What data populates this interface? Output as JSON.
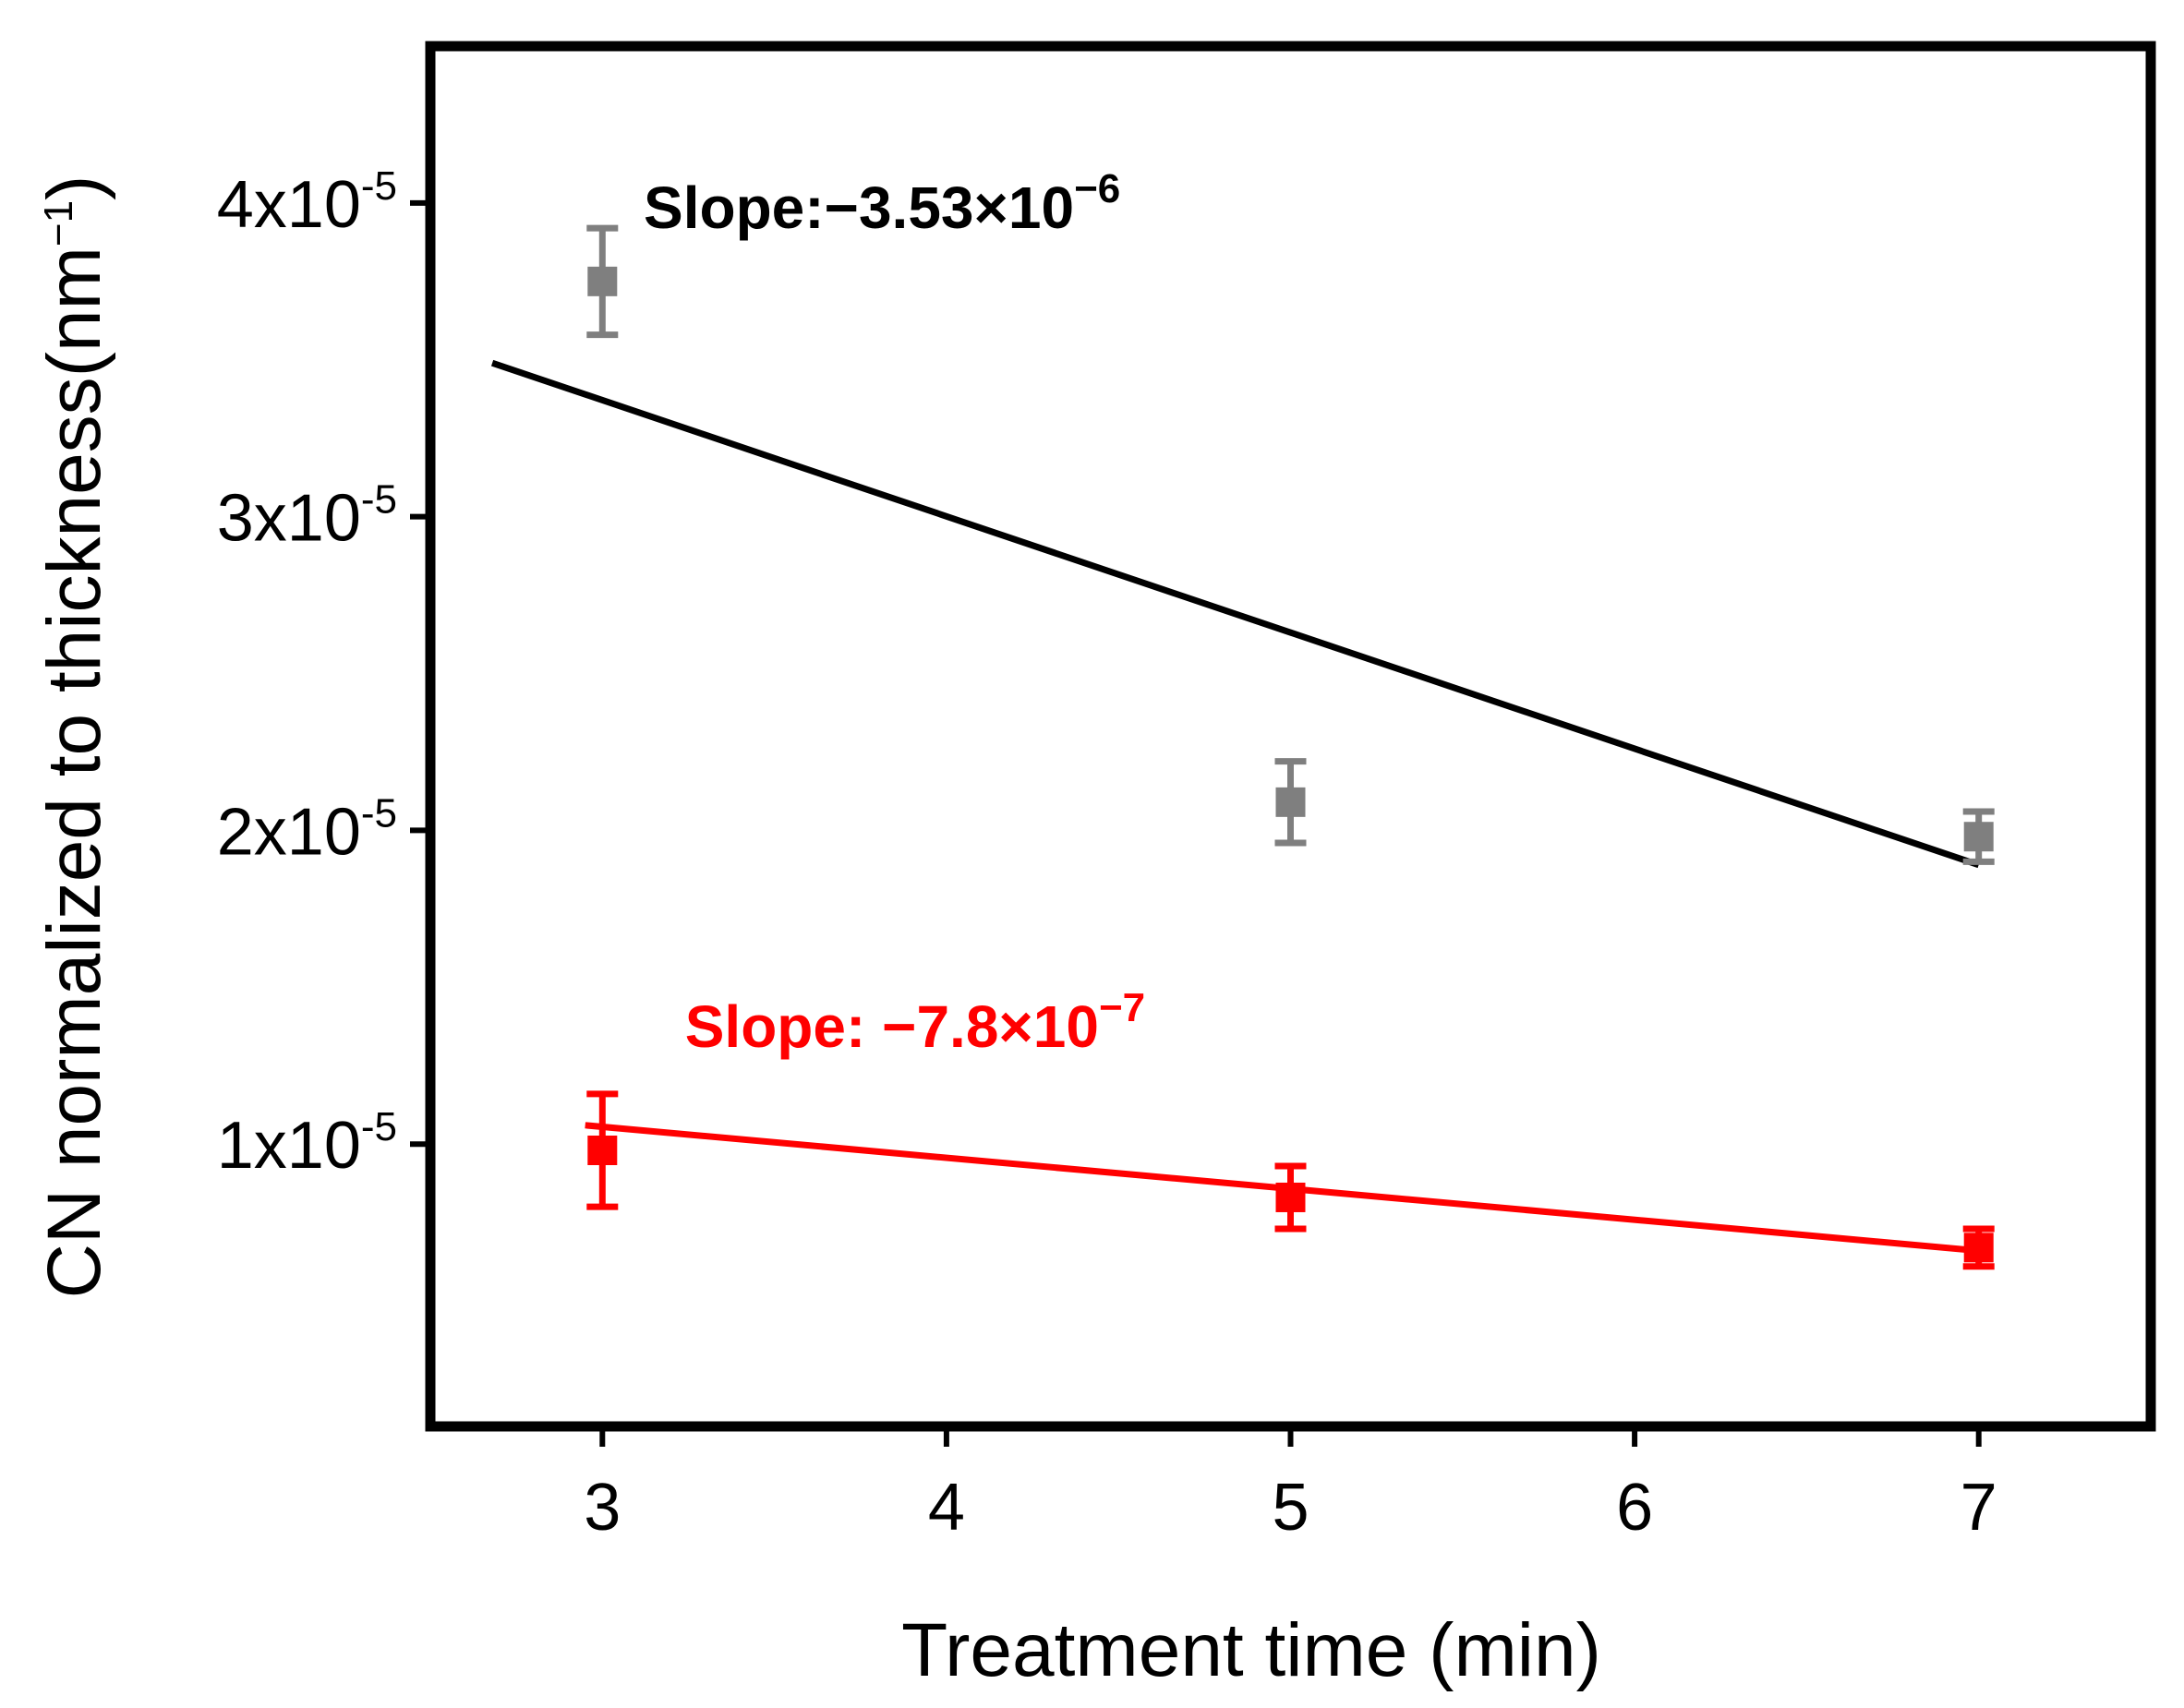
{
  "chart_data": {
    "type": "scatter",
    "title": "",
    "xlabel": "Treatment time (min)",
    "ylabel_main": "CN normalized to thickness(nm",
    "ylabel_sup": "−1",
    "ylabel_close": ")",
    "xlim": [
      2.5,
      7.5
    ],
    "ylim": [
      1e-06,
      4.5e-05
    ],
    "xticks": [
      3,
      4,
      5,
      6,
      7
    ],
    "yticks": [
      {
        "value": 1e-05,
        "mantissa": "1x10",
        "exp": "-5"
      },
      {
        "value": 2e-05,
        "mantissa": "2x10",
        "exp": "-5"
      },
      {
        "value": 3e-05,
        "mantissa": "3x10",
        "exp": "-5"
      },
      {
        "value": 4e-05,
        "mantissa": "4x10",
        "exp": "-5"
      }
    ],
    "series": [
      {
        "name": "gray",
        "marker_color": "#7f7f7f",
        "fit_color": "#000000",
        "x": [
          3,
          5,
          7
        ],
        "y": [
          3.75e-05,
          2.09e-05,
          1.98e-05
        ],
        "err": [
          1.7e-06,
          1.3e-06,
          8e-07
        ],
        "fit": {
          "x": [
            2.68,
            7.0
          ],
          "y": [
            3.49e-05,
            1.89e-05
          ]
        },
        "annotation": {
          "prefix": "Slope:−3.53×10",
          "exp": "−6",
          "x": 3.12,
          "y": 3.92e-05,
          "color": "#000000"
        }
      },
      {
        "name": "red",
        "marker_color": "#ff0000",
        "fit_color": "#ff0000",
        "x": [
          3,
          5,
          7
        ],
        "y": [
          9.8e-06,
          8.3e-06,
          6.7e-06
        ],
        "err": [
          1.8e-06,
          1e-06,
          6e-07
        ],
        "fit": {
          "x": [
            2.95,
            7.0
          ],
          "y": [
            1.06e-05,
            6.6e-06
          ]
        },
        "annotation": {
          "prefix": "Slope: −7.8×10",
          "exp": "−7",
          "x": 3.24,
          "y": 1.31e-05,
          "color": "#ff0000"
        }
      }
    ]
  }
}
